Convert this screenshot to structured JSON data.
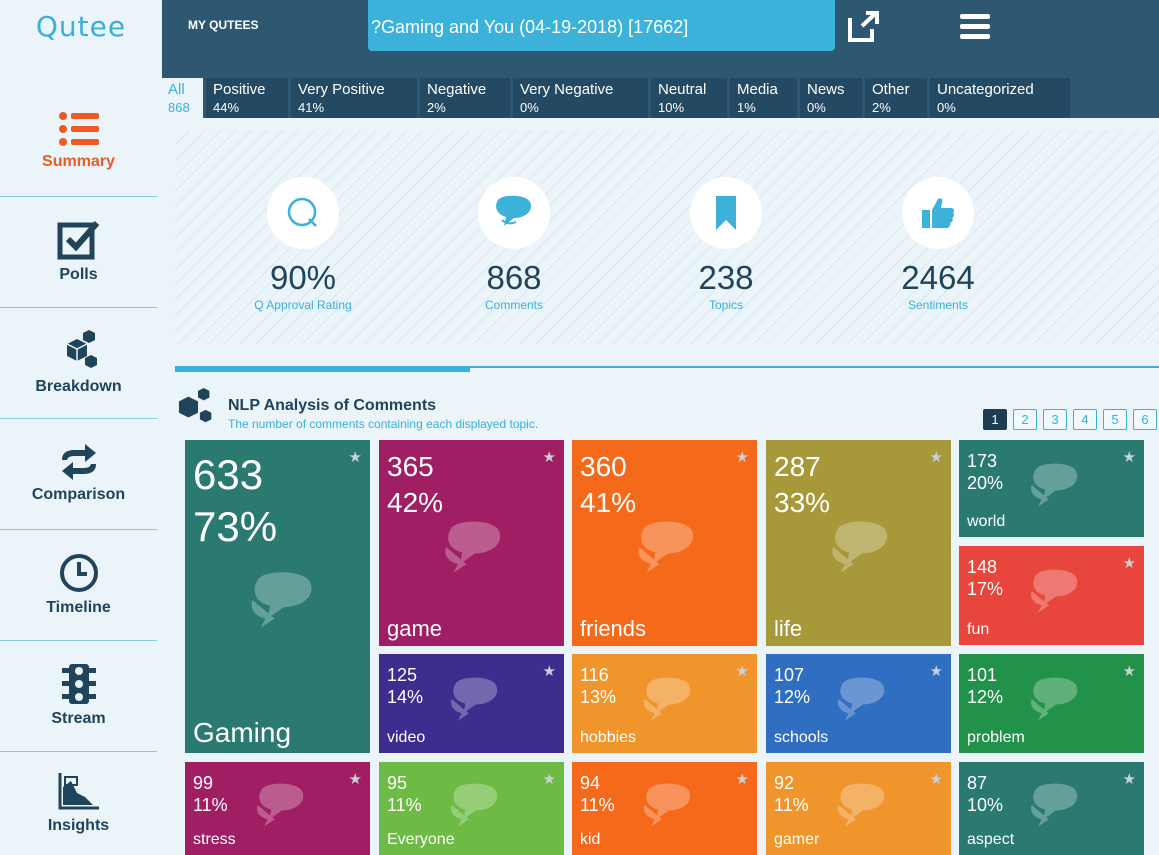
{
  "app": {
    "logo": "Qutee"
  },
  "nav": [
    {
      "label": "Summary",
      "icon": "list-icon",
      "active": true
    },
    {
      "label": "Polls",
      "icon": "checkbox-icon"
    },
    {
      "label": "Breakdown",
      "icon": "cubes-icon"
    },
    {
      "label": "Comparison",
      "icon": "exchange-icon"
    },
    {
      "label": "Timeline",
      "icon": "clock-icon"
    },
    {
      "label": "Stream",
      "icon": "traffic-light-icon"
    },
    {
      "label": "Insights",
      "icon": "chart-icon"
    }
  ],
  "header": {
    "my_qutees": "MY QUTEES",
    "title": "?Gaming and You (04-19-2018) [17662]",
    "share_icon": "external-link-icon",
    "menu_icon": "hamburger-menu-icon"
  },
  "tabs": [
    {
      "label": "All",
      "pct": "868",
      "active": true
    },
    {
      "label": "Positive",
      "pct": "44%"
    },
    {
      "label": "Very Positive",
      "pct": "41%"
    },
    {
      "label": "Negative",
      "pct": "2%"
    },
    {
      "label": "Very Negative",
      "pct": "0%"
    },
    {
      "label": "Neutral",
      "pct": "10%"
    },
    {
      "label": "Media",
      "pct": "1%"
    },
    {
      "label": "News",
      "pct": "0%"
    },
    {
      "label": "Other",
      "pct": "2%"
    },
    {
      "label": "Uncategorized",
      "pct": "0%"
    }
  ],
  "stats": [
    {
      "value": "90%",
      "caption": "Q Approval Rating",
      "icon": "q-logo-icon"
    },
    {
      "value": "868",
      "caption": "Comments",
      "icon": "speech-bubble-icon"
    },
    {
      "value": "238",
      "caption": "Topics",
      "icon": "bookmark-icon"
    },
    {
      "value": "2464",
      "caption": "Sentiments",
      "icon": "thumbs-up-icon"
    }
  ],
  "progress": {
    "fraction": 0.3
  },
  "nlp": {
    "title": "NLP Analysis of Comments",
    "subtitle": "The number of comments containing each displayed topic.",
    "pages": [
      "1",
      "2",
      "3",
      "4",
      "5",
      "6"
    ],
    "active_page": "1"
  },
  "colors": {
    "teal": "#2a7a72",
    "magenta": "#a01e63",
    "orange": "#f5691b",
    "olive": "#a7993a",
    "red": "#e8453c",
    "indigo": "#3e2c8e",
    "amber": "#f0952b",
    "blue": "#2f6ec0",
    "green": "#22924a",
    "lime": "#6dba45",
    "accent": "#3cb1d9",
    "navy": "#2e5872"
  },
  "topics": [
    {
      "count": "633",
      "pct": "73%",
      "word": "Gaming",
      "color": "#2a7a72",
      "size": "big"
    },
    {
      "count": "365",
      "pct": "42%",
      "word": "game",
      "color": "#a01e63",
      "size": "med"
    },
    {
      "count": "360",
      "pct": "41%",
      "word": "friends",
      "color": "#f5691b",
      "size": "med"
    },
    {
      "count": "287",
      "pct": "33%",
      "word": "life",
      "color": "#a7993a",
      "size": "med"
    },
    {
      "count": "173",
      "pct": "20%",
      "word": "world",
      "color": "#2a7a72",
      "size": "small"
    },
    {
      "count": "148",
      "pct": "17%",
      "word": "fun",
      "color": "#e8453c",
      "size": "small"
    },
    {
      "count": "125",
      "pct": "14%",
      "word": "video",
      "color": "#3e2c8e",
      "size": "small"
    },
    {
      "count": "116",
      "pct": "13%",
      "word": "hobbies",
      "color": "#f0952b",
      "size": "small"
    },
    {
      "count": "107",
      "pct": "12%",
      "word": "schools",
      "color": "#2f6ec0",
      "size": "small"
    },
    {
      "count": "101",
      "pct": "12%",
      "word": "problem",
      "color": "#22924a",
      "size": "small"
    },
    {
      "count": "99",
      "pct": "11%",
      "word": "stress",
      "color": "#a01e63",
      "size": "small"
    },
    {
      "count": "95",
      "pct": "11%",
      "word": "Everyone",
      "color": "#6dba45",
      "size": "small"
    },
    {
      "count": "94",
      "pct": "11%",
      "word": "kid",
      "color": "#f5691b",
      "size": "small"
    },
    {
      "count": "92",
      "pct": "11%",
      "word": "gamer",
      "color": "#f0952b",
      "size": "small"
    },
    {
      "count": "87",
      "pct": "10%",
      "word": "aspect",
      "color": "#2a7a72",
      "size": "small"
    }
  ]
}
